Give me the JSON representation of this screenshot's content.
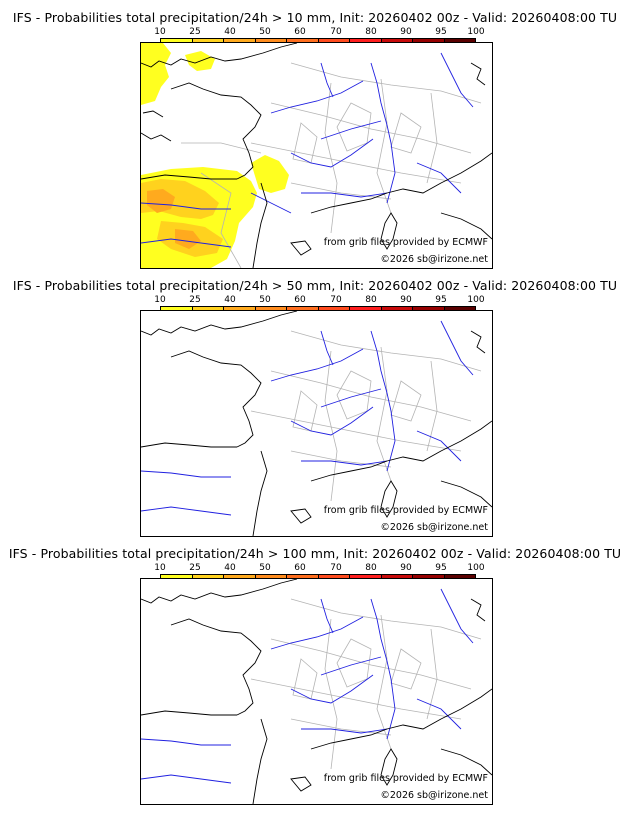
{
  "colorbar": {
    "labels": [
      "10",
      "25",
      "40",
      "50",
      "60",
      "70",
      "80",
      "90",
      "95",
      "100"
    ],
    "colors": [
      "#ffff20",
      "#ffd21e",
      "#ffaa1e",
      "#ff8c1e",
      "#ff6e1e",
      "#ff4b1e",
      "#ff1e1e",
      "#c80a0a",
      "#960000",
      "#5a0000"
    ]
  },
  "panels": [
    {
      "title": "IFS - Probabilities total precipitation/24h > 10 mm, Init: 20260402 00z - Valid: 20260408:00 TU",
      "credit": "from grib files provided by ECMWF",
      "copyright": "©2026 sb@irizone.net"
    },
    {
      "title": "IFS - Probabilities total precipitation/24h > 50 mm, Init: 20260402 00z - Valid: 20260408:00 TU",
      "credit": "from grib files provided by ECMWF",
      "copyright": "©2026 sb@irizone.net"
    },
    {
      "title": "IFS - Probabilities total precipitation/24h > 100 mm, Init: 20260402 00z - Valid: 20260408:00 TU",
      "credit": "from grib files provided by ECMWF",
      "copyright": "©2026 sb@irizone.net"
    }
  ],
  "map_colors": {
    "coast": "#000000",
    "rivers": "#2020e0",
    "borders": "#b4b4b4"
  }
}
